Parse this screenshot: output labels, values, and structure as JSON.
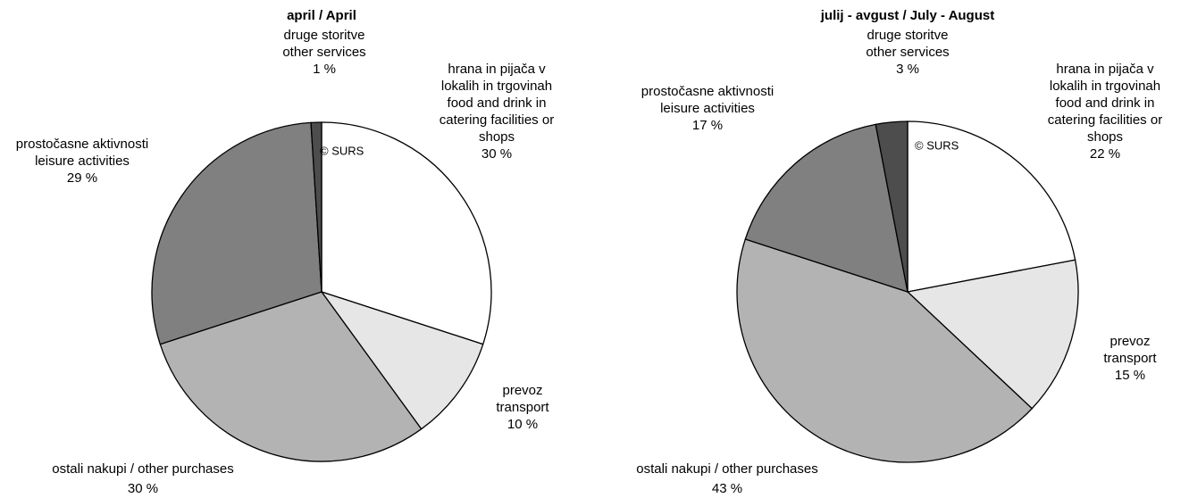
{
  "chart_data": [
    {
      "type": "pie",
      "title": "april / April",
      "annotation": "© SURS",
      "categories": [
        [
          "hrana in pijača v",
          "lokalih in trgovinah",
          "food and drink in",
          "catering facilities or",
          "shops"
        ],
        [
          "prevoz",
          "transport"
        ],
        [
          "ostali nakupi / other purchases"
        ],
        [
          "prostočasne aktivnosti",
          "leisure activities"
        ],
        [
          "druge storitve",
          "other services"
        ]
      ],
      "values": [
        30,
        10,
        30,
        29,
        1
      ],
      "value_labels": [
        "30 %",
        "10 %",
        "30 %",
        "29 %",
        "1 %"
      ],
      "colors": [
        "#ffffff",
        "#e6e6e6",
        "#b3b3b3",
        "#808080",
        "#4d4d4d"
      ]
    },
    {
      "type": "pie",
      "title": "julij - avgust / July - August",
      "annotation": "© SURS",
      "categories": [
        [
          "hrana in pijača v",
          "lokalih in trgovinah",
          "food and drink in",
          "catering facilities or",
          "shops"
        ],
        [
          "prevoz",
          "transport"
        ],
        [
          "ostali nakupi / other purchases"
        ],
        [
          "prostočasne aktivnosti",
          "leisure activities"
        ],
        [
          "druge storitve",
          "other services"
        ]
      ],
      "values": [
        22,
        15,
        43,
        17,
        3
      ],
      "value_labels": [
        "22 %",
        "15 %",
        "43 %",
        "17 %",
        "3 %"
      ],
      "colors": [
        "#ffffff",
        "#e6e6e6",
        "#b3b3b3",
        "#808080",
        "#4d4d4d"
      ]
    }
  ]
}
